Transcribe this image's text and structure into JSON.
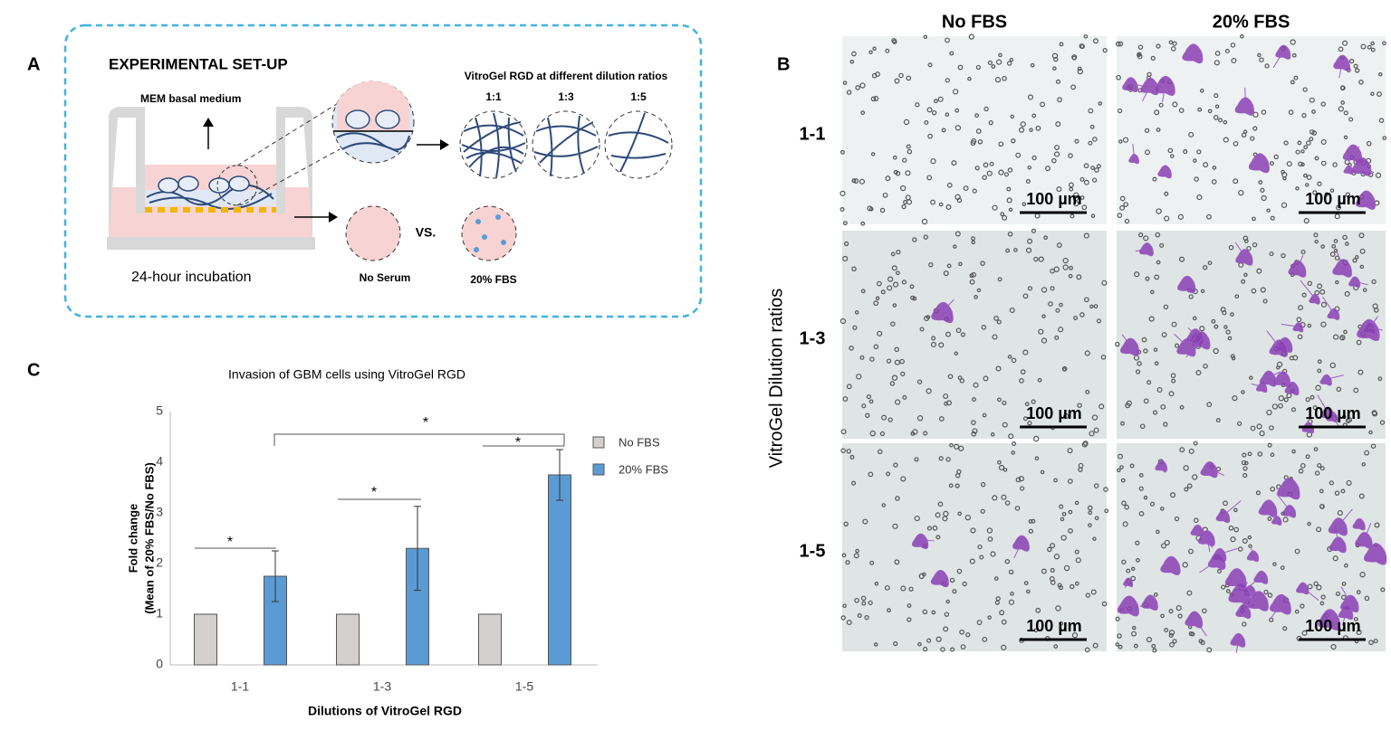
{
  "panel_a": {
    "label": "A",
    "title": "EXPERIMENTAL SET-UP",
    "medium": "MEM basal medium",
    "incubation": "24-hour incubation",
    "gel_heading": "VitroGel RGD at different dilution ratios",
    "ratios": [
      "1:1",
      "1:3",
      "1:5"
    ],
    "no_serum": "No Serum",
    "versus": "VS.",
    "fbs": "20% FBS"
  },
  "panel_b": {
    "label": "B",
    "columns": [
      "No FBS",
      "20% FBS"
    ],
    "rows": [
      "1-1",
      "1-3",
      "1-5"
    ],
    "row_axis_label": "VitroGel Dilution ratios",
    "scale_bars": [
      [
        "100 µm",
        "100 µm"
      ],
      [
        "100 µm",
        "100 µm"
      ],
      [
        "100 µm",
        "100 µm"
      ]
    ]
  },
  "chart_data": {
    "type": "bar",
    "panel_label": "C",
    "title": "Invasion of GBM cells using VitroGel RGD",
    "x_label": "Dilutions of VitroGel RGD",
    "y_label": [
      "Fold change",
      "(Mean of 20% FBS/No FBS)"
    ],
    "categories": [
      "1-1",
      "1-3",
      "1-5"
    ],
    "series": [
      {
        "name": "No FBS",
        "color": "#d4d0d0",
        "values": [
          1,
          1,
          1
        ]
      },
      {
        "name": "20% FBS",
        "color": "#5b9bd5",
        "values": [
          1.75,
          2.3,
          3.75
        ],
        "errors": [
          0.5,
          0.83,
          0.5
        ]
      }
    ],
    "ylim": [
      0,
      5
    ],
    "yticks": [
      0,
      1,
      2,
      3,
      4,
      5
    ],
    "annotations": [
      "*",
      "*",
      "*",
      "*"
    ]
  }
}
